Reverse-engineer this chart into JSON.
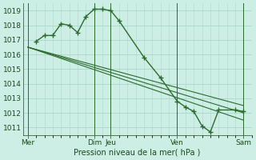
{
  "background_color": "#cceee4",
  "grid_color": "#aad8cc",
  "line_color": "#2d6a2d",
  "marker_color": "#2d6a2d",
  "xlabel": "Pression niveau de la mer( hPa )",
  "ylim": [
    1010.5,
    1019.5
  ],
  "yticks": [
    1011,
    1012,
    1013,
    1014,
    1015,
    1016,
    1017,
    1018,
    1019
  ],
  "xtick_labels": [
    "Mer",
    "Dim",
    "Jeu",
    "Ven",
    "Sam"
  ],
  "xtick_positions": [
    0,
    4,
    5,
    9,
    13
  ],
  "xlim": [
    -0.3,
    13.5
  ],
  "series_main": {
    "x": [
      0.5,
      1.0,
      1.5,
      2.0,
      2.5,
      3.0,
      3.5,
      4.0,
      4.5,
      5.0,
      5.5,
      7.0,
      8.0,
      9.0,
      9.5,
      10.0,
      10.5,
      11.0,
      11.5,
      12.5,
      13.0
    ],
    "y": [
      1016.9,
      1017.3,
      1017.3,
      1018.1,
      1018.0,
      1017.5,
      1018.6,
      1019.1,
      1019.1,
      1019.0,
      1018.3,
      1015.8,
      1014.4,
      1012.8,
      1012.4,
      1012.1,
      1011.1,
      1010.7,
      1012.2,
      1012.2,
      1012.1
    ]
  },
  "series_lines": [
    {
      "x": [
        0.0,
        13.0
      ],
      "y": [
        1016.5,
        1011.5
      ]
    },
    {
      "x": [
        0.0,
        13.0
      ],
      "y": [
        1016.5,
        1012.0
      ]
    },
    {
      "x": [
        0.0,
        13.0
      ],
      "y": [
        1016.5,
        1012.5
      ]
    }
  ],
  "vlines_x": [
    0,
    4,
    5,
    9,
    13
  ],
  "figsize": [
    3.2,
    2.0
  ],
  "dpi": 100
}
